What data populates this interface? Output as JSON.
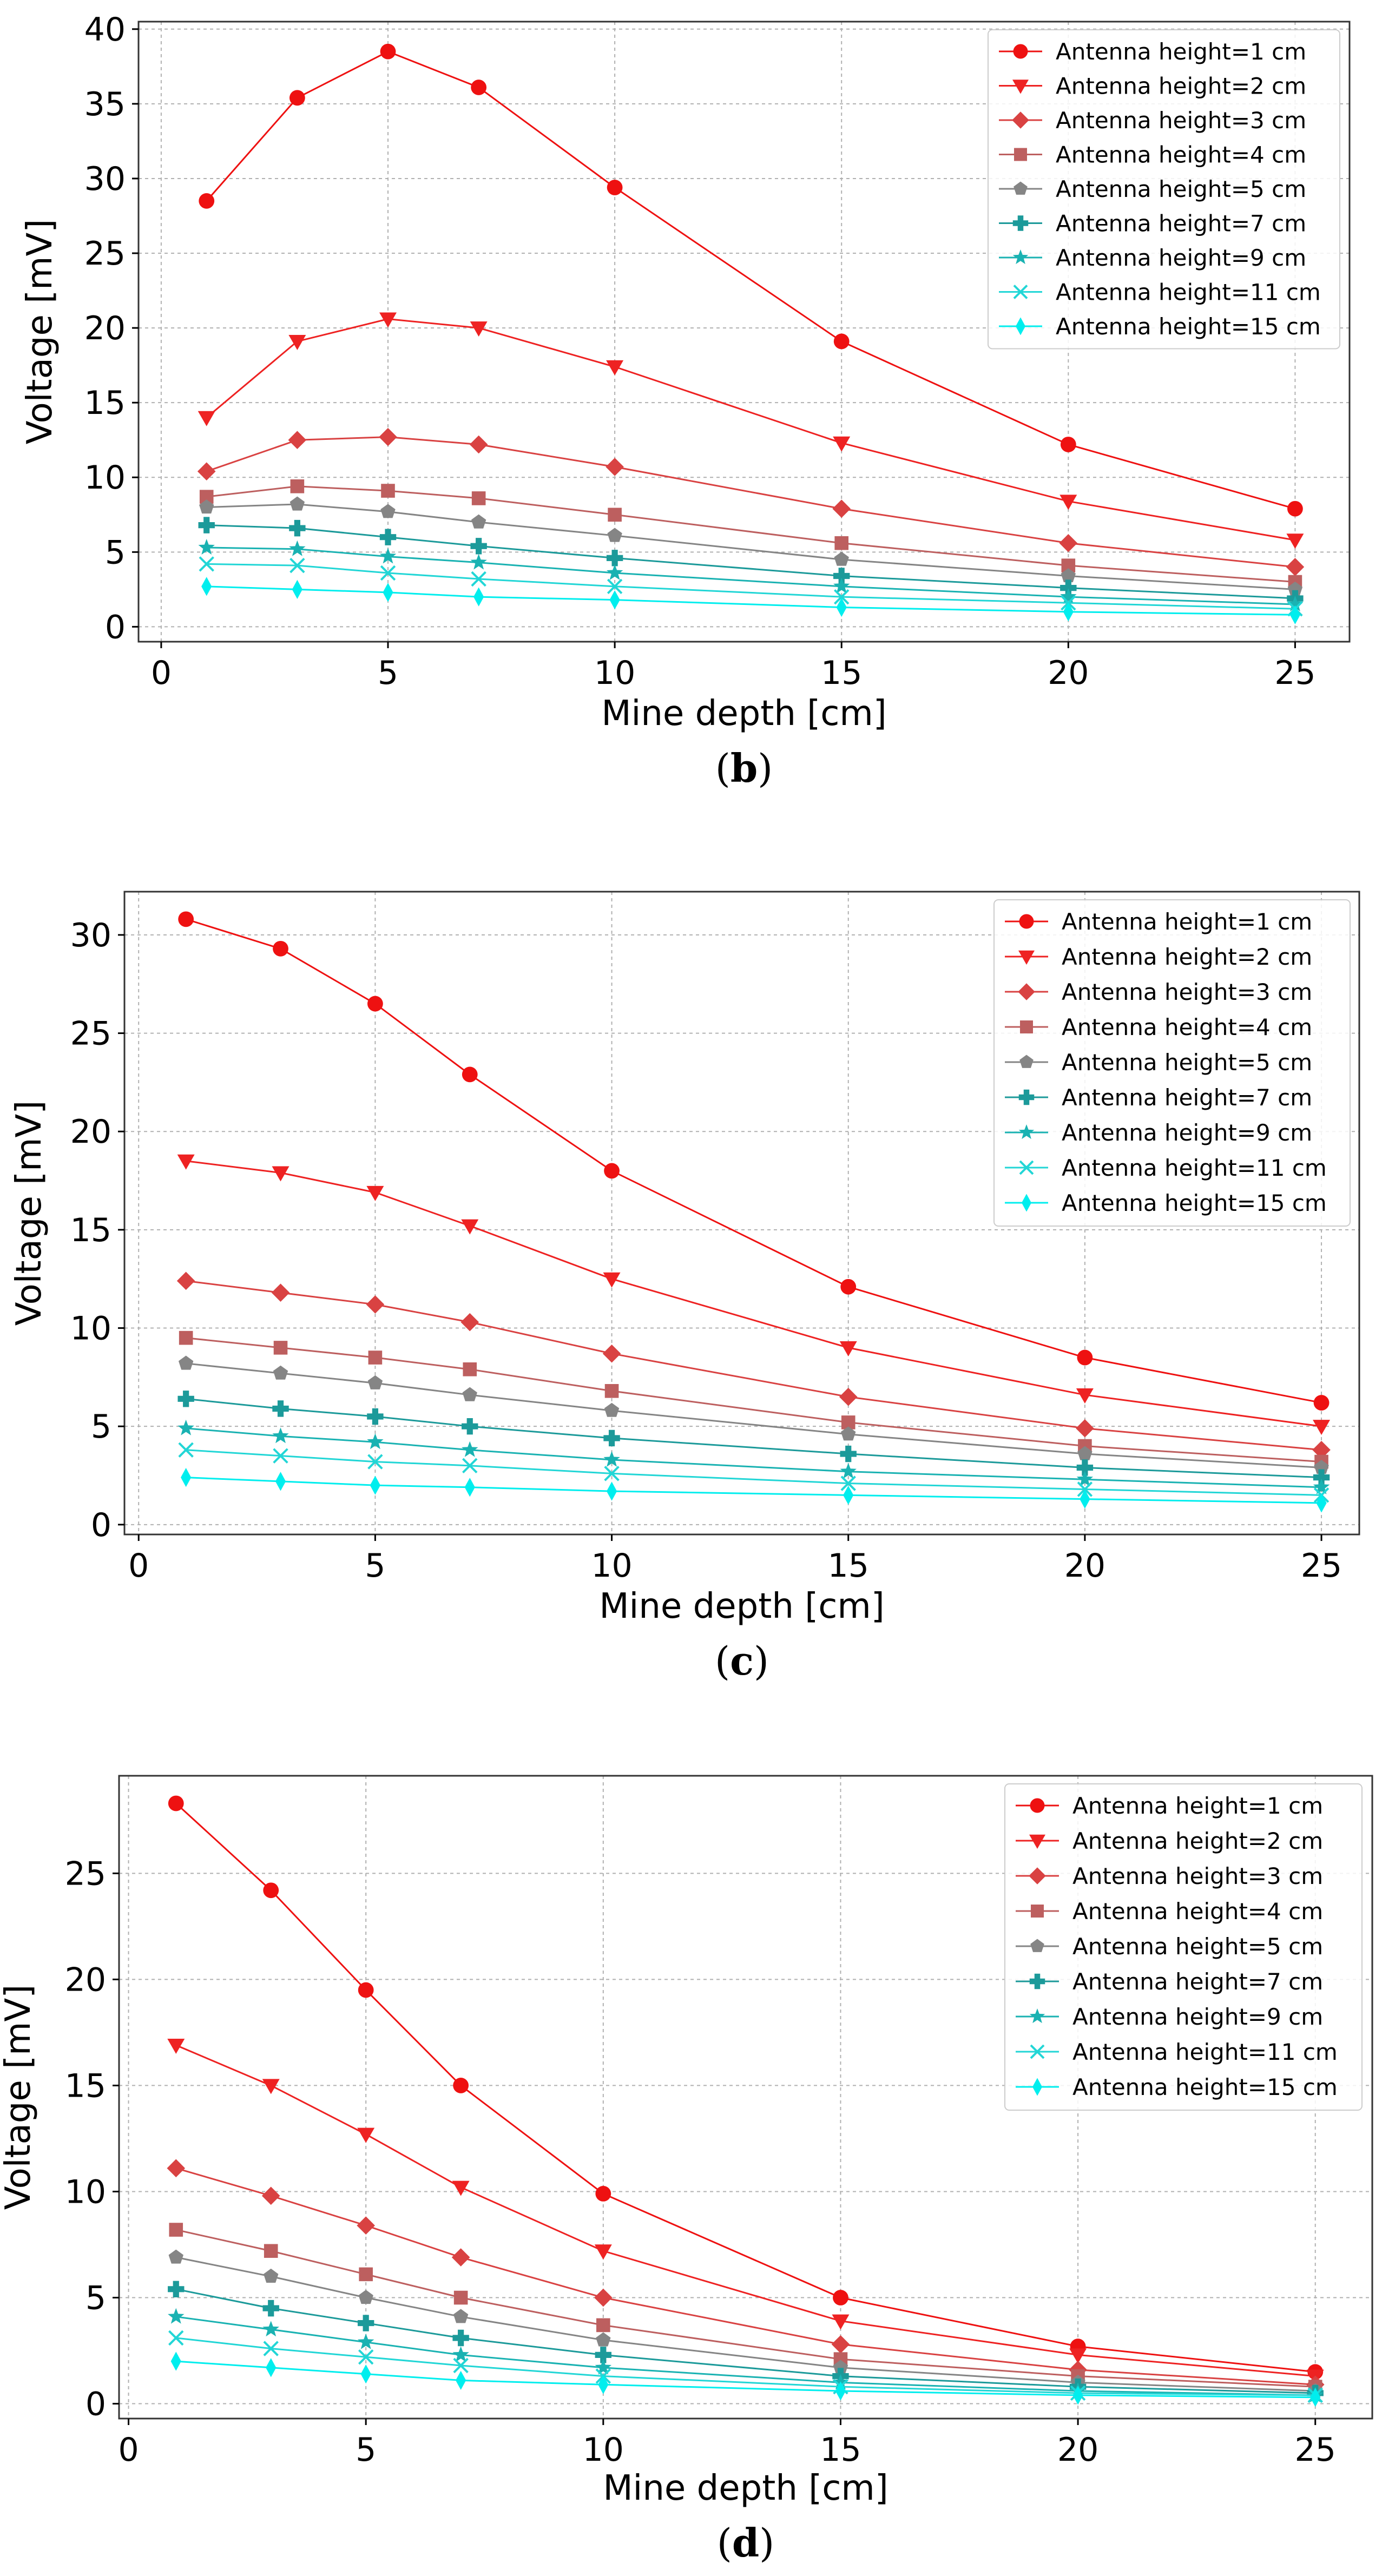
{
  "chart_data": [
    {
      "type": "line",
      "panel_label": "b",
      "xlabel": "Mine depth [cm]",
      "ylabel": "Voltage [mV]",
      "xlim": [
        -0.5,
        26.2
      ],
      "ylim": [
        -1,
        40.5
      ],
      "xticks": [
        0,
        5,
        10,
        15,
        20,
        25
      ],
      "yticks": [
        0,
        5,
        10,
        15,
        20,
        25,
        30,
        35,
        40
      ],
      "grid": true,
      "legend": "top-right",
      "x": [
        1,
        3,
        5,
        7,
        10,
        15,
        20,
        25
      ],
      "series": [
        {
          "name": "Antenna height=1 cm",
          "marker": "circle",
          "color": "#ee1111",
          "values": [
            28.5,
            35.4,
            38.5,
            36.1,
            29.4,
            19.1,
            12.2,
            7.9
          ]
        },
        {
          "name": "Antenna height=2 cm",
          "marker": "triangle-down",
          "color": "#ee2222",
          "values": [
            14.0,
            19.1,
            20.6,
            20.0,
            17.4,
            12.3,
            8.4,
            5.8
          ]
        },
        {
          "name": "Antenna height=3 cm",
          "marker": "diamond",
          "color": "#d94242",
          "values": [
            10.4,
            12.5,
            12.7,
            12.2,
            10.7,
            7.9,
            5.6,
            4.0
          ]
        },
        {
          "name": "Antenna height=4 cm",
          "marker": "square",
          "color": "#bd5f5f",
          "values": [
            8.7,
            9.4,
            9.1,
            8.6,
            7.5,
            5.6,
            4.1,
            3.0
          ]
        },
        {
          "name": "Antenna height=5 cm",
          "marker": "pentagon",
          "color": "#858585",
          "values": [
            8.0,
            8.2,
            7.7,
            7.0,
            6.1,
            4.5,
            3.4,
            2.5
          ]
        },
        {
          "name": "Antenna height=7 cm",
          "marker": "plus",
          "color": "#1c9a9a",
          "values": [
            6.8,
            6.6,
            6.0,
            5.4,
            4.6,
            3.4,
            2.6,
            1.9
          ]
        },
        {
          "name": "Antenna height=9 cm",
          "marker": "star",
          "color": "#1ab2b2",
          "values": [
            5.3,
            5.2,
            4.7,
            4.3,
            3.6,
            2.7,
            2.0,
            1.5
          ]
        },
        {
          "name": "Antenna height=11 cm",
          "marker": "x",
          "color": "#22d6d6",
          "values": [
            4.2,
            4.1,
            3.6,
            3.2,
            2.7,
            2.0,
            1.6,
            1.2
          ]
        },
        {
          "name": "Antenna height=15 cm",
          "marker": "thin-diamond",
          "color": "#00eeee",
          "values": [
            2.7,
            2.5,
            2.3,
            2.0,
            1.8,
            1.3,
            1.0,
            0.8
          ]
        }
      ]
    },
    {
      "type": "line",
      "panel_label": "c",
      "xlabel": "Mine depth [cm]",
      "ylabel": "Voltage [mV]",
      "xlim": [
        -0.3,
        25.8
      ],
      "ylim": [
        -0.5,
        32.2
      ],
      "xticks": [
        0,
        5,
        10,
        15,
        20,
        25
      ],
      "yticks": [
        0,
        5,
        10,
        15,
        20,
        25,
        30
      ],
      "grid": true,
      "legend": "top-right",
      "x": [
        1,
        3,
        5,
        7,
        10,
        15,
        20,
        25
      ],
      "series": [
        {
          "name": "Antenna height=1 cm",
          "marker": "circle",
          "color": "#ee1111",
          "values": [
            30.8,
            29.3,
            26.5,
            22.9,
            18.0,
            12.1,
            8.5,
            6.2
          ]
        },
        {
          "name": "Antenna height=2 cm",
          "marker": "triangle-down",
          "color": "#ee2222",
          "values": [
            18.5,
            17.9,
            16.9,
            15.2,
            12.5,
            9.0,
            6.6,
            5.0
          ]
        },
        {
          "name": "Antenna height=3 cm",
          "marker": "diamond",
          "color": "#d94242",
          "values": [
            12.4,
            11.8,
            11.2,
            10.3,
            8.7,
            6.5,
            4.9,
            3.8
          ]
        },
        {
          "name": "Antenna height=4 cm",
          "marker": "square",
          "color": "#bd5f5f",
          "values": [
            9.5,
            9.0,
            8.5,
            7.9,
            6.8,
            5.2,
            4.0,
            3.2
          ]
        },
        {
          "name": "Antenna height=5 cm",
          "marker": "pentagon",
          "color": "#858585",
          "values": [
            8.2,
            7.7,
            7.2,
            6.6,
            5.8,
            4.6,
            3.6,
            2.9
          ]
        },
        {
          "name": "Antenna height=7 cm",
          "marker": "plus",
          "color": "#1c9a9a",
          "values": [
            6.4,
            5.9,
            5.5,
            5.0,
            4.4,
            3.6,
            2.9,
            2.4
          ]
        },
        {
          "name": "Antenna height=9 cm",
          "marker": "star",
          "color": "#1ab2b2",
          "values": [
            4.9,
            4.5,
            4.2,
            3.8,
            3.3,
            2.7,
            2.3,
            1.9
          ]
        },
        {
          "name": "Antenna height=11 cm",
          "marker": "x",
          "color": "#22d6d6",
          "values": [
            3.8,
            3.5,
            3.2,
            3.0,
            2.6,
            2.1,
            1.8,
            1.5
          ]
        },
        {
          "name": "Antenna height=15 cm",
          "marker": "thin-diamond",
          "color": "#00eeee",
          "values": [
            2.4,
            2.2,
            2.0,
            1.9,
            1.7,
            1.5,
            1.3,
            1.1
          ]
        }
      ]
    },
    {
      "type": "line",
      "panel_label": "d",
      "xlabel": "Mine depth [cm]",
      "ylabel": "Voltage [mV]",
      "xlim": [
        -0.2,
        26.2
      ],
      "ylim": [
        -0.7,
        29.6
      ],
      "xticks": [
        0,
        5,
        10,
        15,
        20,
        25
      ],
      "yticks": [
        0,
        5,
        10,
        15,
        20,
        25
      ],
      "grid": true,
      "legend": "top-right",
      "x": [
        1,
        3,
        5,
        7,
        10,
        15,
        20,
        25
      ],
      "series": [
        {
          "name": "Antenna height=1 cm",
          "marker": "circle",
          "color": "#ee1111",
          "values": [
            28.3,
            24.2,
            19.5,
            15.0,
            9.9,
            5.0,
            2.7,
            1.5
          ]
        },
        {
          "name": "Antenna height=2 cm",
          "marker": "triangle-down",
          "color": "#ee2222",
          "values": [
            16.9,
            15.0,
            12.7,
            10.2,
            7.2,
            3.9,
            2.3,
            1.3
          ]
        },
        {
          "name": "Antenna height=3 cm",
          "marker": "diamond",
          "color": "#d94242",
          "values": [
            11.1,
            9.8,
            8.4,
            6.9,
            5.0,
            2.8,
            1.6,
            0.9
          ]
        },
        {
          "name": "Antenna height=4 cm",
          "marker": "square",
          "color": "#bd5f5f",
          "values": [
            8.2,
            7.2,
            6.1,
            5.0,
            3.7,
            2.1,
            1.3,
            0.8
          ]
        },
        {
          "name": "Antenna height=5 cm",
          "marker": "pentagon",
          "color": "#858585",
          "values": [
            6.9,
            6.0,
            5.0,
            4.1,
            3.0,
            1.7,
            1.0,
            0.6
          ]
        },
        {
          "name": "Antenna height=7 cm",
          "marker": "plus",
          "color": "#1c9a9a",
          "values": [
            5.4,
            4.5,
            3.8,
            3.1,
            2.3,
            1.3,
            0.8,
            0.5
          ]
        },
        {
          "name": "Antenna height=9 cm",
          "marker": "star",
          "color": "#1ab2b2",
          "values": [
            4.1,
            3.5,
            2.9,
            2.3,
            1.7,
            1.0,
            0.6,
            0.4
          ]
        },
        {
          "name": "Antenna height=11 cm",
          "marker": "x",
          "color": "#22d6d6",
          "values": [
            3.1,
            2.6,
            2.2,
            1.8,
            1.3,
            0.8,
            0.5,
            0.4
          ]
        },
        {
          "name": "Antenna height=15 cm",
          "marker": "thin-diamond",
          "color": "#00eeee",
          "values": [
            2.0,
            1.7,
            1.4,
            1.1,
            0.9,
            0.6,
            0.4,
            0.3
          ]
        }
      ]
    }
  ]
}
